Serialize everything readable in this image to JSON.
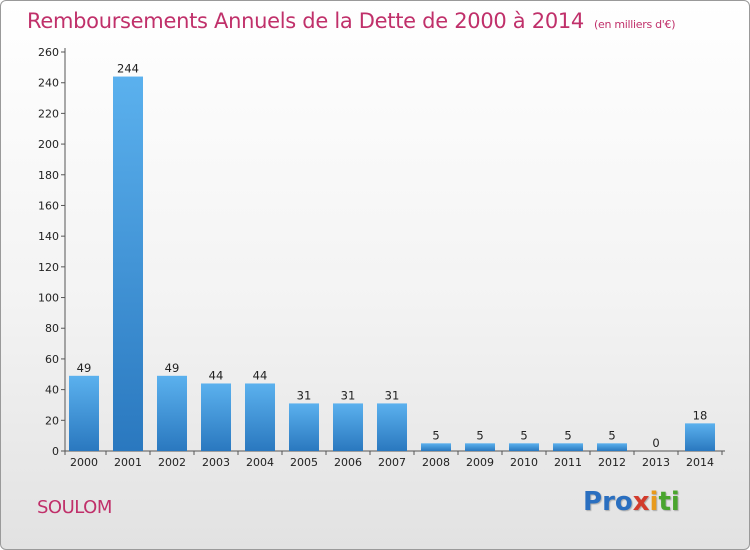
{
  "header": {
    "title": "Remboursements Annuels de la Dette de 2000 à 2014",
    "unit": "(en milliers d'€)"
  },
  "footer": {
    "commune": "SOULOM",
    "brand_letters": [
      {
        "ch": "P",
        "color": "#2a6fc0"
      },
      {
        "ch": "r",
        "color": "#2a6fc0"
      },
      {
        "ch": "o",
        "color": "#2a6fc0"
      },
      {
        "ch": "x",
        "color": "#d23b2c"
      },
      {
        "ch": "i",
        "color": "#e89a1c"
      },
      {
        "ch": "t",
        "color": "#4aa52e"
      },
      {
        "ch": "i",
        "color": "#4aa52e"
      }
    ]
  },
  "chart_data": {
    "type": "bar",
    "title": "Remboursements Annuels de la Dette de 2000 à 2014",
    "categories": [
      "2000",
      "2001",
      "2002",
      "2003",
      "2004",
      "2005",
      "2006",
      "2007",
      "2008",
      "2009",
      "2010",
      "2011",
      "2012",
      "2013",
      "2014"
    ],
    "values": [
      49,
      244,
      49,
      44,
      44,
      31,
      31,
      31,
      5,
      5,
      5,
      5,
      5,
      0,
      18
    ],
    "ylim": [
      0,
      260
    ],
    "yticks": [
      0,
      20,
      40,
      60,
      80,
      100,
      120,
      140,
      160,
      180,
      200,
      220,
      240,
      260
    ],
    "grid": false,
    "bar_color": "#3a90d8"
  }
}
